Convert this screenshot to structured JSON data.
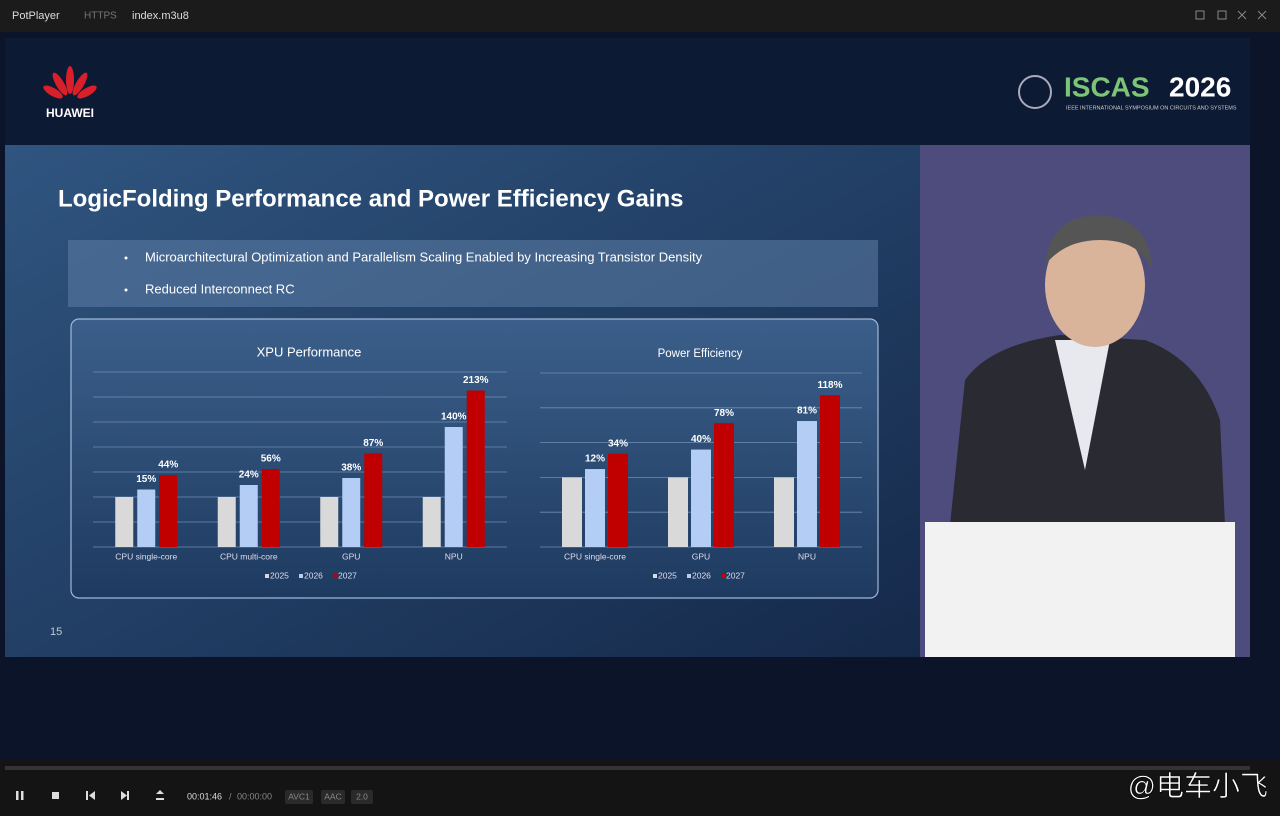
{
  "player": {
    "app": "PotPlayer",
    "protocol": "HTTPS",
    "file": "index.m3u8"
  },
  "slide": {
    "brand": "HUAWEI",
    "conference": "ISCAS",
    "conference_year": "2026",
    "conference_subtitle": "IEEE INTERNATIONAL SYMPOSIUM ON CIRCUITS AND SYSTEMS",
    "title": "LogicFolding Performance and Power Efficiency Gains",
    "bullets": [
      "Microarchitectural Optimization and Parallelism Scaling Enabled by Increasing Transistor Density",
      "Reduced Interconnect RC"
    ],
    "page_number": "15"
  },
  "chart_data": [
    {
      "type": "bar",
      "title": "XPU Performance",
      "categories": [
        "CPU single-core",
        "CPU multi-core",
        "GPU",
        "NPU"
      ],
      "series": [
        {
          "name": "2025",
          "color": "#d9d9d9",
          "values": [
            0,
            0,
            0,
            0
          ]
        },
        {
          "name": "2026",
          "color": "#b4cdf5",
          "values": [
            15,
            24,
            38,
            140
          ],
          "value_labels": [
            "15%",
            "24%",
            "38%",
            "140%"
          ]
        },
        {
          "name": "2027",
          "color": "#c00000",
          "values": [
            44,
            56,
            87,
            213
          ],
          "value_labels": [
            "44%",
            "56%",
            "87%",
            "213%"
          ]
        }
      ],
      "ylim": [
        -100,
        250
      ],
      "yticks": [
        -100,
        -50,
        0,
        50,
        100,
        150,
        200,
        250
      ],
      "grid": true,
      "legend": "bottom"
    },
    {
      "type": "bar",
      "title": "Power Efficiency",
      "categories": [
        "CPU single-core",
        "GPU",
        "NPU"
      ],
      "series": [
        {
          "name": "2025",
          "color": "#d9d9d9",
          "values": [
            0,
            0,
            0
          ]
        },
        {
          "name": "2026",
          "color": "#b4cdf5",
          "values": [
            12,
            40,
            81
          ],
          "value_labels": [
            "12%",
            "40%",
            "81%"
          ]
        },
        {
          "name": "2027",
          "color": "#c00000",
          "values": [
            34,
            78,
            118
          ],
          "value_labels": [
            "34%",
            "78%",
            "118%"
          ]
        }
      ],
      "ylim": [
        -100,
        150
      ],
      "yticks": [
        -100,
        -50,
        0,
        50,
        100,
        150
      ],
      "grid": true,
      "legend": "bottom"
    }
  ],
  "controls": {
    "elapsed": "00:01:46",
    "separator": "/",
    "total": "00:00:00",
    "video_codec": "AVC1",
    "audio_codec": "AAC",
    "channels": "2.0"
  },
  "watermark": "@电车小飞"
}
